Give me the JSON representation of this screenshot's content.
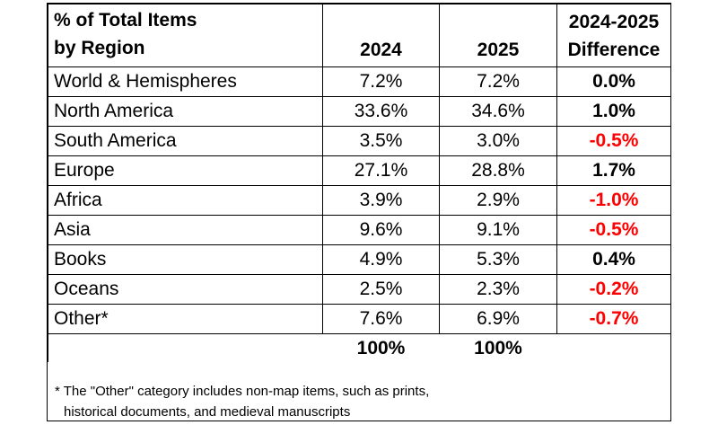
{
  "header": {
    "col1_line1": "% of Total Items",
    "col1_line2": "by Region",
    "col2": "2024",
    "col3": "2025",
    "col4_line1": "2024-2025",
    "col4_line2": "Difference"
  },
  "rows": [
    {
      "region": "World & Hemispheres",
      "y2024": "7.2%",
      "y2025": "7.2%",
      "diff": "0.0%"
    },
    {
      "region": "North America",
      "y2024": "33.6%",
      "y2025": "34.6%",
      "diff": "1.0%"
    },
    {
      "region": "South America",
      "y2024": "3.5%",
      "y2025": "3.0%",
      "diff": "-0.5%"
    },
    {
      "region": "Europe",
      "y2024": "27.1%",
      "y2025": "28.8%",
      "diff": "1.7%"
    },
    {
      "region": "Africa",
      "y2024": "3.9%",
      "y2025": "2.9%",
      "diff": "-1.0%"
    },
    {
      "region": "Asia",
      "y2024": "9.6%",
      "y2025": "9.1%",
      "diff": "-0.5%"
    },
    {
      "region": "Books",
      "y2024": "4.9%",
      "y2025": "5.3%",
      "diff": "0.4%"
    },
    {
      "region": "Oceans",
      "y2024": "2.5%",
      "y2025": "2.3%",
      "diff": "-0.2%"
    },
    {
      "region": "Other*",
      "y2024": "7.6%",
      "y2025": "6.9%",
      "diff": "-0.7%"
    }
  ],
  "totals": {
    "y2024": "100%",
    "y2025": "100%"
  },
  "footnote": {
    "line1": "* The \"Other\" category includes non-map items, such as prints,",
    "line2": "historical documents, and medieval manuscripts"
  },
  "colors": {
    "negative": "#ff0000",
    "positive": "#000000"
  },
  "chart_data": {
    "type": "table",
    "title": "% of Total Items by Region",
    "columns": [
      "% of Total Items by Region",
      "2024",
      "2025",
      "2024-2025 Difference"
    ],
    "categories": [
      "World & Hemispheres",
      "North America",
      "South America",
      "Europe",
      "Africa",
      "Asia",
      "Books",
      "Oceans",
      "Other*"
    ],
    "series": [
      {
        "name": "2024",
        "values": [
          7.2,
          33.6,
          3.5,
          27.1,
          3.9,
          9.6,
          4.9,
          2.5,
          7.6
        ]
      },
      {
        "name": "2025",
        "values": [
          7.2,
          34.6,
          3.0,
          28.8,
          2.9,
          9.1,
          5.3,
          2.3,
          6.9
        ]
      },
      {
        "name": "2024-2025 Difference",
        "values": [
          0.0,
          1.0,
          -0.5,
          1.7,
          -1.0,
          -0.5,
          0.4,
          -0.2,
          -0.7
        ]
      }
    ],
    "totals": {
      "2024": 100,
      "2025": 100
    }
  }
}
